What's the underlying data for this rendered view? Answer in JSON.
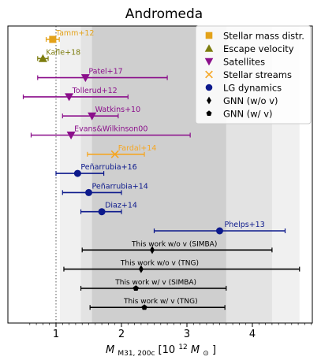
{
  "chart_data": {
    "type": "scatter",
    "title": "Andromeda",
    "xlabel_main": "M",
    "xlabel_sub": "M31, 200c",
    "xlabel_bracket_open": " [10",
    "xlabel_exp": "12",
    "xlabel_msun": "M",
    "xlabel_sun_sub": "⊙",
    "xlabel_bracket_close": "]",
    "xlim": [
      0.5,
      5.2
    ],
    "xticks": [
      1,
      2,
      3,
      4
    ],
    "bands": [
      {
        "lo": 1.06,
        "hi": 4.72,
        "color": "#f0f0f0"
      },
      {
        "lo": 1.38,
        "hi": 4.3,
        "color": "#e3e3e3"
      },
      {
        "lo": 1.55,
        "hi": 3.6,
        "color": "#cfcfcf"
      }
    ],
    "vline": 1.0,
    "legend": {
      "position": "top-right",
      "entries": [
        {
          "label": "Stellar mass distr.",
          "marker": "square",
          "color": "#e3a21a"
        },
        {
          "label": "Escape velocity",
          "marker": "triangle-up",
          "color": "#7d7d0f"
        },
        {
          "label": "Satellites",
          "marker": "triangle-down",
          "color": "#8b0f8b"
        },
        {
          "label": "Stellar streams",
          "marker": "x",
          "color": "#f5a623"
        },
        {
          "label": "LG dynamics",
          "marker": "circle",
          "color": "#0d1a8c"
        },
        {
          "label": "GNN (w/o v)",
          "marker": "diamond",
          "color": "#000000"
        },
        {
          "label": "GNN (w/ v)",
          "marker": "pentagon",
          "color": "#000000"
        }
      ]
    },
    "series": [
      {
        "label": "Tamm+12",
        "x": 0.95,
        "lo": 0.85,
        "hi": 1.05,
        "marker": "square",
        "color": "#e3a21a"
      },
      {
        "label": "Kafle+18",
        "x": 0.8,
        "lo": 0.72,
        "hi": 0.88,
        "marker": "triangle-up",
        "color": "#7d7d0f"
      },
      {
        "label": "Patel+17",
        "x": 1.45,
        "lo": 0.72,
        "hi": 2.7,
        "marker": "triangle-down",
        "color": "#8b0f8b"
      },
      {
        "label": "Tollerud+12",
        "x": 1.2,
        "lo": 0.5,
        "hi": 2.1,
        "marker": "triangle-down",
        "color": "#8b0f8b"
      },
      {
        "label": "Watkins+10",
        "x": 1.55,
        "lo": 1.1,
        "hi": 1.95,
        "marker": "triangle-down",
        "color": "#8b0f8b"
      },
      {
        "label": "Evans&Wilkinson00",
        "x": 1.23,
        "lo": 0.62,
        "hi": 3.05,
        "marker": "triangle-down",
        "color": "#8b0f8b"
      },
      {
        "label": "Fardal+14",
        "x": 1.9,
        "lo": 1.48,
        "hi": 2.35,
        "marker": "x",
        "color": "#f5a623"
      },
      {
        "label": "Peñarrubia+16",
        "x": 1.33,
        "lo": 1.0,
        "hi": 1.73,
        "marker": "circle",
        "color": "#0d1a8c"
      },
      {
        "label": "Peñarrubia+14",
        "x": 1.5,
        "lo": 1.1,
        "hi": 2.0,
        "marker": "circle",
        "color": "#0d1a8c"
      },
      {
        "label": "Diaz+14",
        "x": 1.7,
        "lo": 1.38,
        "hi": 2.0,
        "marker": "circle",
        "color": "#0d1a8c"
      },
      {
        "label": "Phelps+13",
        "x": 3.5,
        "lo": 2.5,
        "hi": 4.5,
        "marker": "circle",
        "color": "#0d1a8c"
      },
      {
        "label": "This work w/o v (SIMBA)",
        "x": 2.47,
        "lo": 1.4,
        "hi": 4.3,
        "marker": "diamond",
        "color": "#000000"
      },
      {
        "label": "This work w/o v (TNG)",
        "x": 2.3,
        "lo": 1.12,
        "hi": 4.72,
        "marker": "diamond",
        "color": "#000000"
      },
      {
        "label": "This work w/ v (SIMBA)",
        "x": 2.22,
        "lo": 1.38,
        "hi": 3.6,
        "marker": "pentagon",
        "color": "#000000"
      },
      {
        "label": "This work w/ v (TNG)",
        "x": 2.35,
        "lo": 1.52,
        "hi": 3.58,
        "marker": "pentagon",
        "color": "#000000"
      }
    ]
  }
}
